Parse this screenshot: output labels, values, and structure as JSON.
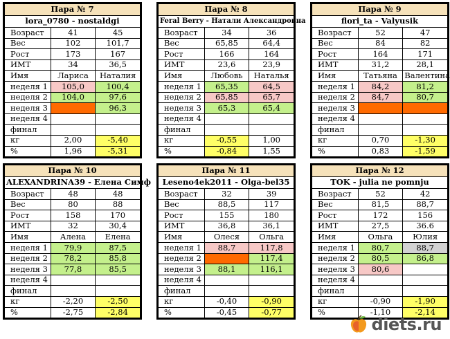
{
  "row_labels": {
    "age": "Возраст",
    "weight": "Вес",
    "height": "Рост",
    "bmi": "ИМТ",
    "name": "Имя",
    "week1": "неделя 1",
    "week2": "неделя 2",
    "week3": "неделя 3",
    "week4": "неделя 4",
    "final": "финал",
    "kg": "кг",
    "pct": "%"
  },
  "pairs": [
    {
      "header": "Пара № 7",
      "title": "lora_0780 - nostaldgi",
      "age": [
        "41",
        "45"
      ],
      "weight": [
        "102",
        "101,7"
      ],
      "height": [
        "173",
        "167"
      ],
      "bmi": [
        "34",
        "36,5"
      ],
      "name": [
        "Лариса",
        "Наталия"
      ],
      "week1": [
        "105,0",
        "100,4"
      ],
      "week2": [
        "104,0",
        "97,6"
      ],
      "week3": [
        "",
        "96,3"
      ],
      "week4": [
        "",
        ""
      ],
      "final": [
        "",
        ""
      ],
      "kg": [
        "2,00",
        "-5,40"
      ],
      "pct": [
        "1,96",
        "-5,31"
      ]
    },
    {
      "header": "Пара № 8",
      "title": "Feral Berry - Натали Александровна",
      "age": [
        "34",
        "36"
      ],
      "weight": [
        "65,85",
        "64,4"
      ],
      "height": [
        "166",
        "164"
      ],
      "bmi": [
        "23,6",
        "23,9"
      ],
      "name": [
        "Любовь",
        "Наталья"
      ],
      "week1": [
        "65,35",
        "64,5"
      ],
      "week2": [
        "65,85",
        "65,7"
      ],
      "week3": [
        "65,3",
        "65,4"
      ],
      "week4": [
        "",
        ""
      ],
      "final": [
        "",
        ""
      ],
      "kg": [
        "-0,55",
        "1,00"
      ],
      "pct": [
        "-0,84",
        "1,55"
      ]
    },
    {
      "header": "Пара № 9",
      "title": "flori_ta - Valyusik",
      "age": [
        "52",
        "47"
      ],
      "weight": [
        "84",
        "82"
      ],
      "height": [
        "164",
        "171"
      ],
      "bmi": [
        "31,2",
        "28,1"
      ],
      "name": [
        "Татьяна",
        "Валентина"
      ],
      "week1": [
        "84,2",
        "81,2"
      ],
      "week2": [
        "84,7",
        "80,7"
      ],
      "week3": [
        "",
        ""
      ],
      "week4": [
        "",
        ""
      ],
      "final": [
        "",
        ""
      ],
      "kg": [
        "0,70",
        "-1,30"
      ],
      "pct": [
        "0,83",
        "-1,59"
      ]
    },
    {
      "header": "Пара № 10",
      "title": "ALEXANDRINA39 - Елена Симф",
      "age": [
        "48",
        "48"
      ],
      "weight": [
        "80",
        "88"
      ],
      "height": [
        "158",
        "170"
      ],
      "bmi": [
        "32",
        "30,4"
      ],
      "name": [
        "Алена",
        "Елена"
      ],
      "week1": [
        "79,9",
        "87,5"
      ],
      "week2": [
        "78,2",
        "85,8"
      ],
      "week3": [
        "77,8",
        "85,5"
      ],
      "week4": [
        "",
        ""
      ],
      "final": [
        "",
        ""
      ],
      "kg": [
        "-2,20",
        "-2,50"
      ],
      "pct": [
        "-2,75",
        "-2,84"
      ]
    },
    {
      "header": "Пара № 11",
      "title": "Leseno4ek2011 - Olga-bel35",
      "age": [
        "32",
        "39"
      ],
      "weight": [
        "88,5",
        "117"
      ],
      "height": [
        "155",
        "180"
      ],
      "bmi": [
        "36,8",
        "36,1"
      ],
      "name": [
        "Олеся",
        "Ольга"
      ],
      "week1": [
        "88,7",
        "117,8"
      ],
      "week2": [
        "",
        "117,4"
      ],
      "week3": [
        "88,1",
        "116,1"
      ],
      "week4": [
        "",
        ""
      ],
      "final": [
        "",
        ""
      ],
      "kg": [
        "-0,40",
        "-0,90"
      ],
      "pct": [
        "-0,45",
        "-0,77"
      ]
    },
    {
      "header": "Пара № 12",
      "title": "TOK - julia ne pomnju",
      "age": [
        "52",
        "42"
      ],
      "weight": [
        "81,5",
        "88,7"
      ],
      "height": [
        "172",
        "156"
      ],
      "bmi": [
        "27,5",
        "36.6"
      ],
      "name": [
        "Ольга",
        "Юлия"
      ],
      "week1": [
        "80,7",
        "88,7"
      ],
      "week2": [
        "80,5",
        "86,8"
      ],
      "week3": [
        "80,6",
        ""
      ],
      "week4": [
        "",
        ""
      ],
      "final": [
        "",
        ""
      ],
      "kg": [
        "-0,90",
        "-1,90"
      ],
      "pct": [
        "-1,10",
        "-2,14"
      ]
    }
  ],
  "logo": {
    "text": "diets.ru"
  },
  "colors": {
    "header_bg": "#f6e2ba",
    "pink": "#f7c8c6",
    "green": "#c4f08c",
    "orange": "#ff6a00",
    "yellow": "#ffff66",
    "gray": "#d2d2d2"
  }
}
